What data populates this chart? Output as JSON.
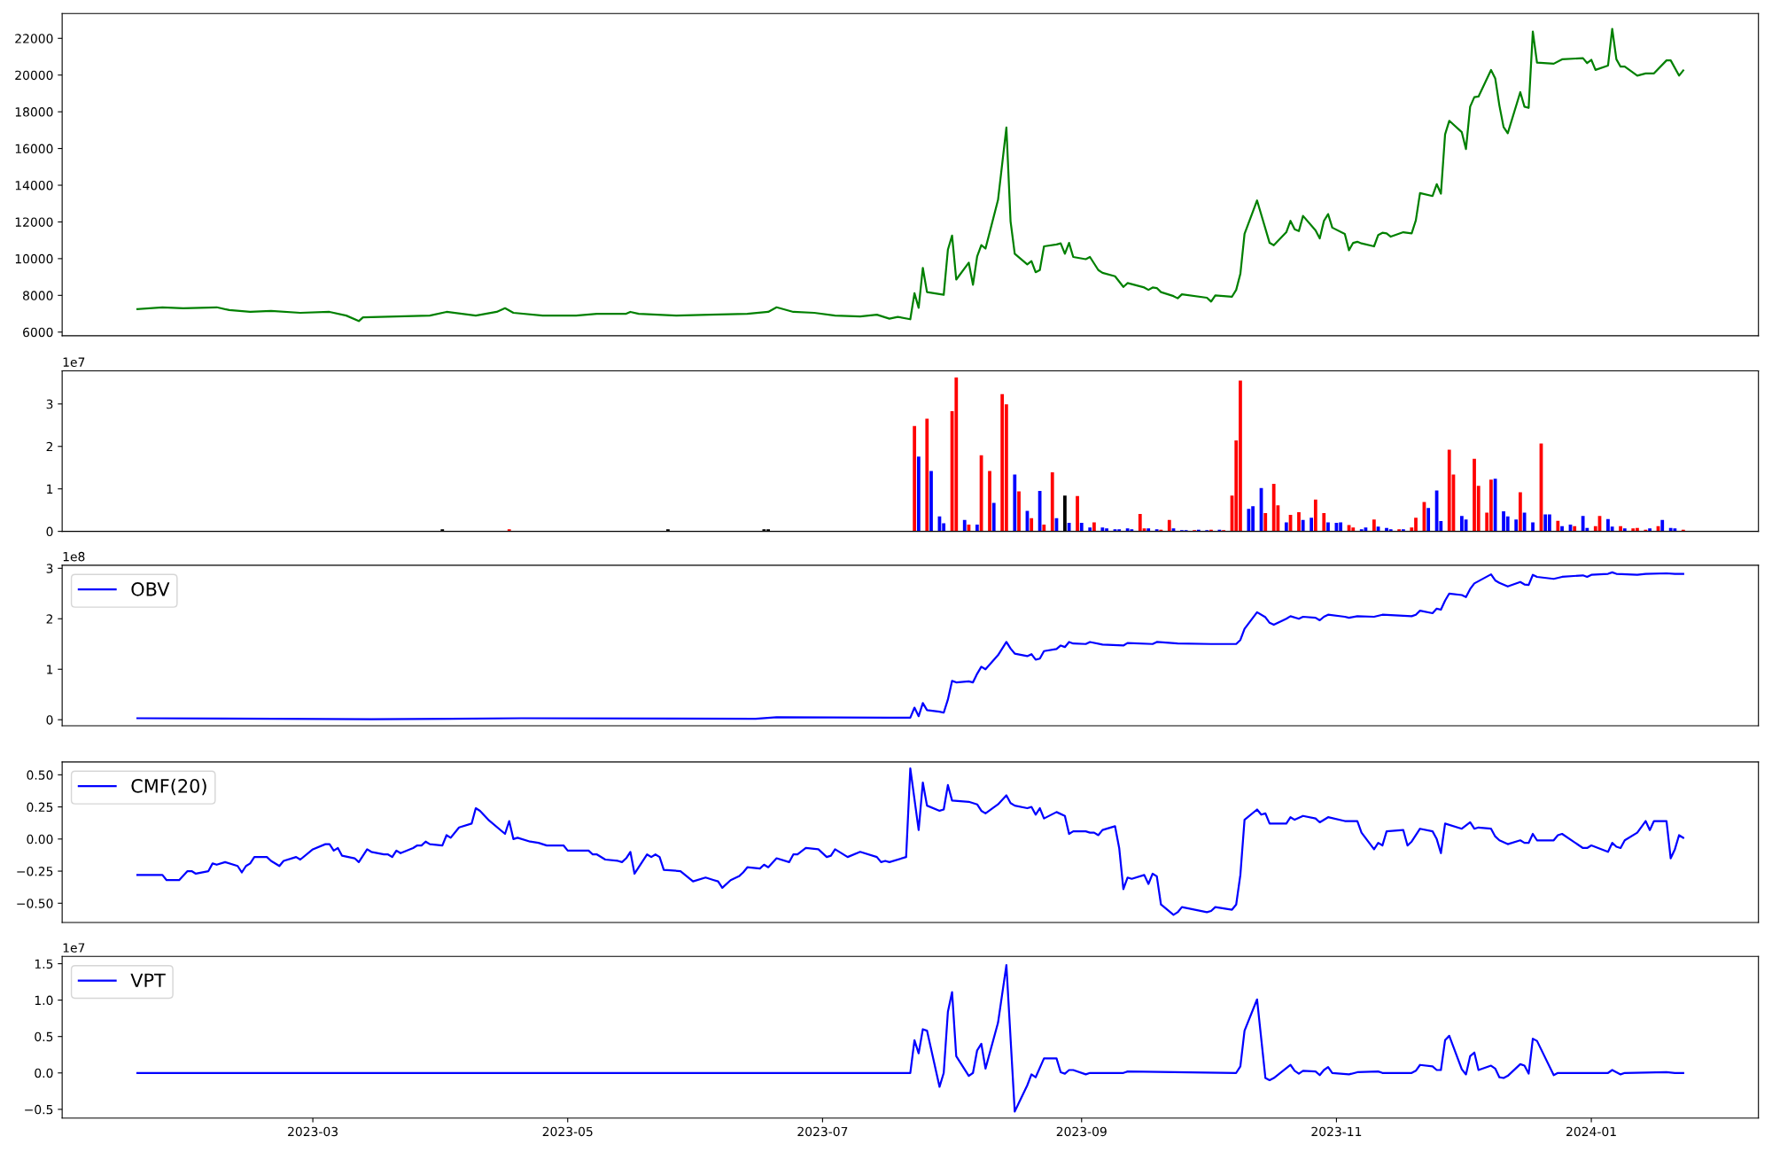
{
  "chart_data": [
    {
      "type": "line",
      "xlim": [
        "2022-12-31",
        "2024-02-10"
      ],
      "ylim": [
        5800,
        23350
      ],
      "yticks": [
        6000,
        8000,
        10000,
        12000,
        14000,
        16000,
        18000,
        20000,
        22000
      ],
      "tick_labels": "y",
      "series": [
        {
          "color": "#008000",
          "x": [
            "2023-01-18",
            "2023-01-24",
            "2023-01-29",
            "2023-02-06",
            "2023-02-09",
            "2023-02-14",
            "2023-02-19",
            "2023-02-26",
            "2023-03-05",
            "2023-03-09",
            "2023-03-12",
            "2023-03-13",
            "2023-03-21",
            "2023-03-29",
            "2023-04-02",
            "2023-04-09",
            "2023-04-14",
            "2023-04-16",
            "2023-04-18",
            "2023-04-25",
            "2023-05-03",
            "2023-05-08",
            "2023-05-15",
            "2023-05-16",
            "2023-05-18",
            "2023-05-27",
            "2023-06-04",
            "2023-06-13",
            "2023-06-18",
            "2023-06-20",
            "2023-06-24",
            "2023-06-29",
            "2023-07-04",
            "2023-07-10",
            "2023-07-14",
            "2023-07-17",
            "2023-07-19",
            "2023-07-22",
            "2023-07-23",
            "2023-07-24",
            "2023-07-25",
            "2023-07-26",
            "2023-07-30",
            "2023-07-31",
            "2023-08-01",
            "2023-08-02",
            "2023-08-05",
            "2023-08-06",
            "2023-08-07",
            "2023-08-08",
            "2023-08-09",
            "2023-08-12",
            "2023-08-14",
            "2023-08-15",
            "2023-08-16",
            "2023-08-19",
            "2023-08-20",
            "2023-08-21",
            "2023-08-22",
            "2023-08-23",
            "2023-08-26",
            "2023-08-27",
            "2023-08-28",
            "2023-08-29",
            "2023-08-30",
            "2023-09-02",
            "2023-09-03",
            "2023-09-05",
            "2023-09-06",
            "2023-09-09",
            "2023-09-11",
            "2023-09-12",
            "2023-09-16",
            "2023-09-17",
            "2023-09-18",
            "2023-09-19",
            "2023-09-20",
            "2023-09-23",
            "2023-09-24",
            "2023-09-25",
            "2023-10-01",
            "2023-10-02",
            "2023-10-03",
            "2023-10-07",
            "2023-10-08",
            "2023-10-09",
            "2023-10-10",
            "2023-10-13",
            "2023-10-16",
            "2023-10-17",
            "2023-10-20",
            "2023-10-21",
            "2023-10-22",
            "2023-10-23",
            "2023-10-24",
            "2023-10-27",
            "2023-10-28",
            "2023-10-29",
            "2023-10-30",
            "2023-10-31",
            "2023-11-03",
            "2023-11-04",
            "2023-11-05",
            "2023-11-06",
            "2023-11-07",
            "2023-11-10",
            "2023-11-11",
            "2023-11-12",
            "2023-11-13",
            "2023-11-14",
            "2023-11-17",
            "2023-11-19",
            "2023-11-20",
            "2023-11-21",
            "2023-11-24",
            "2023-11-25",
            "2023-11-26",
            "2023-11-27",
            "2023-11-28",
            "2023-12-01",
            "2023-12-02",
            "2023-12-03",
            "2023-12-04",
            "2023-12-05",
            "2023-12-08",
            "2023-12-09",
            "2023-12-10",
            "2023-12-11",
            "2023-12-12",
            "2023-12-15",
            "2023-12-16",
            "2023-12-17",
            "2023-12-18",
            "2023-12-19",
            "2023-12-23",
            "2023-12-25",
            "2023-12-30",
            "2023-12-31",
            "2024-01-01",
            "2024-01-02",
            "2024-01-05",
            "2024-01-06",
            "2024-01-07",
            "2024-01-08",
            "2024-01-09",
            "2024-01-12",
            "2024-01-14",
            "2024-01-16",
            "2024-01-19",
            "2024-01-20",
            "2024-01-22",
            "2024-01-23"
          ],
          "values": [
            7250,
            7350,
            7300,
            7350,
            7200,
            7100,
            7150,
            7050,
            7100,
            6900,
            6600,
            6800,
            6850,
            6900,
            7100,
            6900,
            7100,
            7300,
            7050,
            6900,
            6900,
            7000,
            7000,
            7100,
            7000,
            6900,
            6950,
            7000,
            7100,
            7350,
            7100,
            7050,
            6900,
            6850,
            6950,
            6730,
            6830,
            6700,
            8120,
            7320,
            9500,
            8180,
            8030,
            10490,
            11260,
            8860,
            9780,
            8580,
            10120,
            10740,
            10550,
            13200,
            17140,
            12030,
            10270,
            9690,
            9870,
            9260,
            9380,
            10670,
            10770,
            10830,
            10270,
            10860,
            10090,
            9970,
            10090,
            9380,
            9230,
            9040,
            8460,
            8670,
            8430,
            8300,
            8430,
            8400,
            8180,
            7960,
            7840,
            8060,
            7870,
            7660,
            8000,
            7930,
            8300,
            9170,
            11350,
            13170,
            10860,
            10730,
            11440,
            12060,
            11600,
            11500,
            12330,
            11540,
            11100,
            12060,
            12430,
            11690,
            11350,
            10460,
            10860,
            10920,
            10830,
            10670,
            11290,
            11410,
            11380,
            11200,
            11440,
            11380,
            12090,
            13570,
            13410,
            14060,
            13540,
            16770,
            17510,
            16890,
            15970,
            18280,
            18800,
            18830,
            20280,
            19820,
            18340,
            17170,
            16830,
            19070,
            18280,
            18210,
            22370,
            20680,
            20620,
            20860,
            20920,
            20650,
            20830,
            20280,
            20520,
            22520,
            20860,
            20460,
            20460,
            19970,
            20090,
            20090,
            20800,
            20800,
            19970,
            20250
          ]
        }
      ]
    },
    {
      "type": "bar",
      "xlim": [
        "2022-12-31",
        "2024-02-10"
      ],
      "ylim": [
        0,
        3.78
      ],
      "yticks": [
        0,
        1,
        2,
        3
      ],
      "tick_labels": "y",
      "annotations": [
        "1e7"
      ],
      "series": [
        {
          "x": [
            "2023-04-01",
            "2023-04-17",
            "2023-05-25",
            "2023-06-17",
            "2023-06-18",
            "2023-07-23",
            "2023-07-24",
            "2023-07-26",
            "2023-07-27",
            "2023-07-29",
            "2023-07-30",
            "2023-08-01",
            "2023-08-02",
            "2023-08-04",
            "2023-08-05",
            "2023-08-07",
            "2023-08-08",
            "2023-08-10",
            "2023-08-11",
            "2023-08-13",
            "2023-08-14",
            "2023-08-16",
            "2023-08-17",
            "2023-08-19",
            "2023-08-20",
            "2023-08-22",
            "2023-08-23",
            "2023-08-25",
            "2023-08-26",
            "2023-08-28",
            "2023-08-29",
            "2023-08-31",
            "2023-09-01",
            "2023-09-03",
            "2023-09-04",
            "2023-09-06",
            "2023-09-07",
            "2023-09-09",
            "2023-09-10",
            "2023-09-12",
            "2023-09-13",
            "2023-09-15",
            "2023-09-16",
            "2023-09-17",
            "2023-09-19",
            "2023-09-20",
            "2023-09-22",
            "2023-09-23",
            "2023-09-25",
            "2023-09-26",
            "2023-09-28",
            "2023-09-29",
            "2023-10-01",
            "2023-10-02",
            "2023-10-04",
            "2023-10-05",
            "2023-10-07",
            "2023-10-08",
            "2023-10-09",
            "2023-10-11",
            "2023-10-12",
            "2023-10-14",
            "2023-10-15",
            "2023-10-17",
            "2023-10-18",
            "2023-10-20",
            "2023-10-21",
            "2023-10-23",
            "2023-10-24",
            "2023-10-26",
            "2023-10-27",
            "2023-10-29",
            "2023-10-30",
            "2023-11-01",
            "2023-11-02",
            "2023-11-04",
            "2023-11-05",
            "2023-11-07",
            "2023-11-08",
            "2023-11-10",
            "2023-11-11",
            "2023-11-13",
            "2023-11-14",
            "2023-11-16",
            "2023-11-17",
            "2023-11-19",
            "2023-11-20",
            "2023-11-22",
            "2023-11-23",
            "2023-11-25",
            "2023-11-26",
            "2023-11-28",
            "2023-11-29",
            "2023-12-01",
            "2023-12-02",
            "2023-12-04",
            "2023-12-05",
            "2023-12-07",
            "2023-12-08",
            "2023-12-09",
            "2023-12-11",
            "2023-12-12",
            "2023-12-14",
            "2023-12-15",
            "2023-12-16",
            "2023-12-18",
            "2023-12-20",
            "2023-12-21",
            "2023-12-22",
            "2023-12-24",
            "2023-12-25",
            "2023-12-27",
            "2023-12-28",
            "2023-12-30",
            "2023-12-31",
            "2024-01-02",
            "2024-01-03",
            "2024-01-05",
            "2024-01-06",
            "2024-01-08",
            "2024-01-09",
            "2024-01-11",
            "2024-01-12",
            "2024-01-14",
            "2024-01-15",
            "2024-01-17",
            "2024-01-18",
            "2024-01-20",
            "2024-01-21",
            "2024-01-23"
          ],
          "values": [
            0.05,
            0.05,
            0.05,
            0.05,
            0.05,
            2.48,
            1.76,
            2.65,
            1.42,
            0.35,
            0.19,
            2.83,
            3.62,
            0.27,
            0.16,
            0.16,
            1.79,
            1.42,
            0.67,
            3.23,
            2.99,
            1.34,
            0.94,
            0.48,
            0.31,
            0.95,
            0.16,
            1.39,
            0.31,
            0.84,
            0.2,
            0.83,
            0.2,
            0.09,
            0.21,
            0.09,
            0.07,
            0.05,
            0.05,
            0.07,
            0.05,
            0.41,
            0.07,
            0.07,
            0.05,
            0.04,
            0.27,
            0.07,
            0.03,
            0.03,
            0.03,
            0.04,
            0.03,
            0.04,
            0.04,
            0.03,
            0.84,
            2.14,
            3.55,
            0.53,
            0.59,
            1.02,
            0.43,
            1.12,
            0.61,
            0.21,
            0.39,
            0.45,
            0.27,
            0.32,
            0.75,
            0.43,
            0.21,
            0.2,
            0.21,
            0.15,
            0.09,
            0.05,
            0.09,
            0.28,
            0.11,
            0.08,
            0.05,
            0.05,
            0.05,
            0.09,
            0.32,
            0.69,
            0.55,
            0.96,
            0.24,
            1.92,
            1.34,
            0.36,
            0.28,
            1.71,
            1.07,
            0.44,
            1.22,
            1.24,
            0.47,
            0.35,
            0.28,
            0.92,
            0.44,
            0.21,
            2.07,
            0.4,
            0.4,
            0.25,
            0.12,
            0.16,
            0.12,
            0.36,
            0.08,
            0.12,
            0.36,
            0.29,
            0.11,
            0.12,
            0.07,
            0.07,
            0.08,
            0.04,
            0.07,
            0.12,
            0.27,
            0.08,
            0.07,
            0.04
          ],
          "colors": [
            "#000000",
            "#ff0000",
            "#000000",
            "#000000",
            "#000000",
            "#ff0000",
            "#0000ff",
            "#ff0000",
            "#0000ff",
            "#0000ff",
            "#0000ff",
            "#ff0000",
            "#ff0000",
            "#0000ff",
            "#ff0000",
            "#0000ff",
            "#ff0000",
            "#ff0000",
            "#0000ff",
            "#ff0000",
            "#ff0000",
            "#0000ff",
            "#ff0000",
            "#0000ff",
            "#ff0000",
            "#0000ff",
            "#ff0000",
            "#ff0000",
            "#0000ff",
            "#000000",
            "#0000ff",
            "#ff0000",
            "#0000ff",
            "#0000ff",
            "#ff0000",
            "#0000ff",
            "#0000ff",
            "#0000ff",
            "#0000ff",
            "#0000ff",
            "#0000ff",
            "#ff0000",
            "#ff0000",
            "#0000ff",
            "#0000ff",
            "#ff0000",
            "#ff0000",
            "#0000ff",
            "#0000ff",
            "#0000ff",
            "#ff0000",
            "#0000ff",
            "#0000ff",
            "#ff0000",
            "#0000ff",
            "#ff0000",
            "#ff0000",
            "#ff0000",
            "#ff0000",
            "#0000ff",
            "#0000ff",
            "#0000ff",
            "#ff0000",
            "#ff0000",
            "#ff0000",
            "#0000ff",
            "#ff0000",
            "#ff0000",
            "#0000ff",
            "#0000ff",
            "#ff0000",
            "#ff0000",
            "#0000ff",
            "#0000ff",
            "#0000ff",
            "#ff0000",
            "#ff0000",
            "#0000ff",
            "#0000ff",
            "#ff0000",
            "#0000ff",
            "#0000ff",
            "#0000ff",
            "#ff0000",
            "#0000ff",
            "#ff0000",
            "#ff0000",
            "#ff0000",
            "#0000ff",
            "#0000ff",
            "#0000ff",
            "#ff0000",
            "#ff0000",
            "#0000ff",
            "#0000ff",
            "#ff0000",
            "#ff0000",
            "#ff0000",
            "#ff0000",
            "#0000ff",
            "#0000ff",
            "#0000ff",
            "#0000ff",
            "#ff0000",
            "#0000ff",
            "#0000ff",
            "#ff0000",
            "#0000ff",
            "#0000ff",
            "#ff0000",
            "#0000ff",
            "#0000ff",
            "#ff0000",
            "#0000ff",
            "#0000ff",
            "#ff0000",
            "#ff0000",
            "#0000ff",
            "#0000ff",
            "#ff0000",
            "#0000ff",
            "#ff0000",
            "#ff0000",
            "#ff0000",
            "#0000ff",
            "#ff0000",
            "#0000ff",
            "#0000ff",
            "#0000ff",
            "#ff0000"
          ]
        }
      ]
    },
    {
      "type": "line",
      "xlim": [
        "2022-12-31",
        "2024-02-10"
      ],
      "ylim": [
        -0.12,
        3.06
      ],
      "yticks": [
        0,
        1,
        2,
        3
      ],
      "tick_labels": "y",
      "legend": "top left",
      "annotations": [
        "1e8"
      ],
      "series": [
        {
          "name": "OBV",
          "color": "#0000ff",
          "x": [
            "2023-01-18",
            "2023-02-20",
            "2023-03-15",
            "2023-04-20",
            "2023-06-15",
            "2023-06-20",
            "2023-07-17",
            "2023-07-22",
            "2023-07-23",
            "2023-07-24",
            "2023-07-25",
            "2023-07-26",
            "2023-07-29",
            "2023-07-30",
            "2023-07-31",
            "2023-08-01",
            "2023-08-02",
            "2023-08-05",
            "2023-08-06",
            "2023-08-07",
            "2023-08-08",
            "2023-08-09",
            "2023-08-12",
            "2023-08-14",
            "2023-08-15",
            "2023-08-16",
            "2023-08-19",
            "2023-08-20",
            "2023-08-21",
            "2023-08-22",
            "2023-08-23",
            "2023-08-26",
            "2023-08-27",
            "2023-08-28",
            "2023-08-29",
            "2023-08-30",
            "2023-09-02",
            "2023-09-03",
            "2023-09-06",
            "2023-09-11",
            "2023-09-12",
            "2023-09-18",
            "2023-09-19",
            "2023-09-24",
            "2023-10-02",
            "2023-10-08",
            "2023-10-09",
            "2023-10-10",
            "2023-10-13",
            "2023-10-15",
            "2023-10-16",
            "2023-10-17",
            "2023-10-20",
            "2023-10-21",
            "2023-10-23",
            "2023-10-24",
            "2023-10-27",
            "2023-10-28",
            "2023-10-29",
            "2023-10-30",
            "2023-11-03",
            "2023-11-04",
            "2023-11-06",
            "2023-11-10",
            "2023-11-12",
            "2023-11-17",
            "2023-11-19",
            "2023-11-20",
            "2023-11-21",
            "2023-11-24",
            "2023-11-25",
            "2023-11-26",
            "2023-11-27",
            "2023-11-28",
            "2023-12-01",
            "2023-12-02",
            "2023-12-03",
            "2023-12-04",
            "2023-12-08",
            "2023-12-09",
            "2023-12-10",
            "2023-12-12",
            "2023-12-15",
            "2023-12-16",
            "2023-12-17",
            "2023-12-18",
            "2023-12-19",
            "2023-12-23",
            "2023-12-25",
            "2023-12-30",
            "2023-12-31",
            "2024-01-01",
            "2024-01-05",
            "2024-01-06",
            "2024-01-07",
            "2024-01-12",
            "2024-01-14",
            "2024-01-19",
            "2024-01-21",
            "2024-01-23"
          ],
          "values": [
            0.03,
            0.02,
            0.01,
            0.03,
            0.02,
            0.05,
            0.04,
            0.04,
            0.24,
            0.07,
            0.33,
            0.19,
            0.16,
            0.14,
            0.4,
            0.77,
            0.74,
            0.76,
            0.74,
            0.91,
            1.05,
            1.0,
            1.28,
            1.54,
            1.41,
            1.31,
            1.26,
            1.3,
            1.19,
            1.21,
            1.36,
            1.4,
            1.47,
            1.44,
            1.54,
            1.51,
            1.5,
            1.54,
            1.49,
            1.47,
            1.52,
            1.5,
            1.54,
            1.51,
            1.5,
            1.5,
            1.58,
            1.8,
            2.13,
            2.03,
            1.92,
            1.88,
            2.0,
            2.05,
            2.0,
            2.04,
            2.02,
            1.97,
            2.04,
            2.08,
            2.04,
            2.02,
            2.05,
            2.04,
            2.08,
            2.06,
            2.05,
            2.08,
            2.16,
            2.11,
            2.2,
            2.18,
            2.36,
            2.5,
            2.47,
            2.43,
            2.59,
            2.7,
            2.88,
            2.76,
            2.71,
            2.64,
            2.73,
            2.68,
            2.67,
            2.87,
            2.83,
            2.79,
            2.83,
            2.86,
            2.83,
            2.87,
            2.89,
            2.92,
            2.89,
            2.87,
            2.89,
            2.9,
            2.89,
            2.89
          ]
        }
      ]
    },
    {
      "type": "line",
      "xlim": [
        "2022-12-31",
        "2024-02-10"
      ],
      "ylim": [
        -0.65,
        0.6
      ],
      "yticks": [
        {
          "value": -0.5,
          "label": "−0.50"
        },
        {
          "value": -0.25,
          "label": "−0.25"
        },
        {
          "value": 0,
          "label": "0.00"
        },
        {
          "value": 0.25,
          "label": "0.25"
        },
        {
          "value": 0.5,
          "label": "0.50"
        }
      ],
      "tick_labels": "y",
      "legend": "top left",
      "series": [
        {
          "name": "CMF(20)",
          "color": "#0000ff",
          "x": [
            "2023-01-18",
            "2023-01-24",
            "2023-01-25",
            "2023-01-28",
            "2023-01-30",
            "2023-01-31",
            "2023-02-01",
            "2023-02-04",
            "2023-02-05",
            "2023-02-06",
            "2023-02-08",
            "2023-02-11",
            "2023-02-12",
            "2023-02-13",
            "2023-02-14",
            "2023-02-15",
            "2023-02-18",
            "2023-02-19",
            "2023-02-21",
            "2023-02-22",
            "2023-02-25",
            "2023-02-26",
            "2023-03-01",
            "2023-03-04",
            "2023-03-05",
            "2023-03-06",
            "2023-03-07",
            "2023-03-08",
            "2023-03-11",
            "2023-03-12",
            "2023-03-14",
            "2023-03-15",
            "2023-03-18",
            "2023-03-19",
            "2023-03-20",
            "2023-03-21",
            "2023-03-22",
            "2023-03-25",
            "2023-03-26",
            "2023-03-27",
            "2023-03-28",
            "2023-03-29",
            "2023-04-01",
            "2023-04-02",
            "2023-04-03",
            "2023-04-05",
            "2023-04-08",
            "2023-04-09",
            "2023-04-10",
            "2023-04-12",
            "2023-04-16",
            "2023-04-17",
            "2023-04-18",
            "2023-04-19",
            "2023-04-22",
            "2023-04-24",
            "2023-04-26",
            "2023-04-30",
            "2023-05-01",
            "2023-05-02",
            "2023-05-06",
            "2023-05-07",
            "2023-05-08",
            "2023-05-10",
            "2023-05-13",
            "2023-05-14",
            "2023-05-15",
            "2023-05-16",
            "2023-05-17",
            "2023-05-20",
            "2023-05-21",
            "2023-05-22",
            "2023-05-23",
            "2023-05-24",
            "2023-05-28",
            "2023-05-31",
            "2023-06-03",
            "2023-06-05",
            "2023-06-06",
            "2023-06-07",
            "2023-06-09",
            "2023-06-11",
            "2023-06-12",
            "2023-06-13",
            "2023-06-16",
            "2023-06-17",
            "2023-06-18",
            "2023-06-20",
            "2023-06-23",
            "2023-06-24",
            "2023-06-25",
            "2023-06-27",
            "2023-06-30",
            "2023-07-02",
            "2023-07-03",
            "2023-07-04",
            "2023-07-07",
            "2023-07-10",
            "2023-07-14",
            "2023-07-15",
            "2023-07-16",
            "2023-07-17",
            "2023-07-21",
            "2023-07-22",
            "2023-07-24",
            "2023-07-25",
            "2023-07-26",
            "2023-07-29",
            "2023-07-30",
            "2023-07-31",
            "2023-08-01",
            "2023-08-05",
            "2023-08-07",
            "2023-08-08",
            "2023-08-09",
            "2023-08-12",
            "2023-08-14",
            "2023-08-15",
            "2023-08-16",
            "2023-08-19",
            "2023-08-20",
            "2023-08-21",
            "2023-08-22",
            "2023-08-23",
            "2023-08-26",
            "2023-08-28",
            "2023-08-29",
            "2023-08-30",
            "2023-09-02",
            "2023-09-03",
            "2023-09-04",
            "2023-09-05",
            "2023-09-06",
            "2023-09-09",
            "2023-09-10",
            "2023-09-11",
            "2023-09-12",
            "2023-09-13",
            "2023-09-16",
            "2023-09-17",
            "2023-09-18",
            "2023-09-19",
            "2023-09-20",
            "2023-09-23",
            "2023-09-24",
            "2023-09-25",
            "2023-10-01",
            "2023-10-02",
            "2023-10-03",
            "2023-10-07",
            "2023-10-08",
            "2023-10-09",
            "2023-10-10",
            "2023-10-13",
            "2023-10-14",
            "2023-10-15",
            "2023-10-16",
            "2023-10-20",
            "2023-10-21",
            "2023-10-22",
            "2023-10-24",
            "2023-10-27",
            "2023-10-28",
            "2023-10-30",
            "2023-11-03",
            "2023-11-04",
            "2023-11-06",
            "2023-11-07",
            "2023-11-10",
            "2023-11-11",
            "2023-11-12",
            "2023-11-13",
            "2023-11-17",
            "2023-11-18",
            "2023-11-19",
            "2023-11-21",
            "2023-11-24",
            "2023-11-25",
            "2023-11-26",
            "2023-11-27",
            "2023-12-01",
            "2023-12-03",
            "2023-12-04",
            "2023-12-05",
            "2023-12-08",
            "2023-12-09",
            "2023-12-10",
            "2023-12-12",
            "2023-12-15",
            "2023-12-16",
            "2023-12-17",
            "2023-12-18",
            "2023-12-19",
            "2023-12-23",
            "2023-12-24",
            "2023-12-25",
            "2023-12-30",
            "2023-12-31",
            "2024-01-01",
            "2024-01-05",
            "2024-01-06",
            "2024-01-07",
            "2024-01-08",
            "2024-01-09",
            "2024-01-12",
            "2024-01-14",
            "2024-01-15",
            "2024-01-16",
            "2024-01-19",
            "2024-01-20",
            "2024-01-21",
            "2024-01-22",
            "2024-01-23"
          ],
          "values": [
            -0.28,
            -0.28,
            -0.32,
            -0.32,
            -0.25,
            -0.25,
            -0.27,
            -0.25,
            -0.19,
            -0.2,
            -0.18,
            -0.21,
            -0.26,
            -0.21,
            -0.19,
            -0.14,
            -0.14,
            -0.17,
            -0.21,
            -0.17,
            -0.14,
            -0.16,
            -0.08,
            -0.04,
            -0.04,
            -0.09,
            -0.07,
            -0.13,
            -0.15,
            -0.18,
            -0.08,
            -0.1,
            -0.12,
            -0.12,
            -0.14,
            -0.09,
            -0.11,
            -0.07,
            -0.05,
            -0.05,
            -0.02,
            -0.04,
            -0.05,
            0.03,
            0.01,
            0.09,
            0.12,
            0.24,
            0.22,
            0.15,
            0.04,
            0.14,
            0.0,
            0.01,
            -0.02,
            -0.03,
            -0.05,
            -0.05,
            -0.09,
            -0.09,
            -0.09,
            -0.12,
            -0.12,
            -0.16,
            -0.17,
            -0.18,
            -0.15,
            -0.1,
            -0.27,
            -0.12,
            -0.14,
            -0.12,
            -0.14,
            -0.24,
            -0.25,
            -0.33,
            -0.3,
            -0.32,
            -0.33,
            -0.38,
            -0.32,
            -0.29,
            -0.26,
            -0.22,
            -0.23,
            -0.2,
            -0.22,
            -0.15,
            -0.18,
            -0.12,
            -0.12,
            -0.07,
            -0.08,
            -0.14,
            -0.13,
            -0.08,
            -0.14,
            -0.1,
            -0.14,
            -0.18,
            -0.17,
            -0.18,
            -0.14,
            0.55,
            0.07,
            0.44,
            0.26,
            0.22,
            0.23,
            0.42,
            0.3,
            0.29,
            0.27,
            0.22,
            0.2,
            0.27,
            0.34,
            0.28,
            0.26,
            0.24,
            0.25,
            0.19,
            0.24,
            0.16,
            0.21,
            0.18,
            0.04,
            0.06,
            0.06,
            0.05,
            0.05,
            0.03,
            0.07,
            0.1,
            -0.07,
            -0.39,
            -0.3,
            -0.31,
            -0.28,
            -0.35,
            -0.27,
            -0.29,
            -0.51,
            -0.59,
            -0.57,
            -0.53,
            -0.57,
            -0.56,
            -0.53,
            -0.55,
            -0.51,
            -0.28,
            0.15,
            0.23,
            0.19,
            0.2,
            0.12,
            0.12,
            0.17,
            0.15,
            0.18,
            0.16,
            0.13,
            0.17,
            0.14,
            0.14,
            0.14,
            0.05,
            -0.08,
            -0.03,
            -0.05,
            0.06,
            0.07,
            -0.05,
            -0.02,
            0.08,
            0.06,
            0.0,
            -0.11,
            0.12,
            0.08,
            0.13,
            0.08,
            0.09,
            0.08,
            0.02,
            -0.01,
            -0.04,
            -0.01,
            -0.03,
            -0.03,
            0.04,
            -0.01,
            -0.01,
            0.03,
            0.04,
            -0.07,
            -0.07,
            -0.05,
            -0.1,
            -0.03,
            -0.06,
            -0.07,
            -0.01,
            0.05,
            0.14,
            0.07,
            0.14,
            0.14,
            -0.15,
            -0.08,
            0.03,
            0.01
          ]
        }
      ]
    },
    {
      "type": "line",
      "xlim": [
        "2022-12-31",
        "2024-02-10"
      ],
      "ylim": [
        -0.62,
        1.6
      ],
      "yticks": [
        {
          "value": -0.5,
          "label": "−0.5"
        },
        {
          "value": 0,
          "label": "0.0"
        },
        {
          "value": 0.5,
          "label": "0.5"
        },
        {
          "value": 1,
          "label": "1.0"
        },
        {
          "value": 1.5,
          "label": "1.5"
        }
      ],
      "xticks": [
        {
          "value": "2023-03-01",
          "label": "2023-03"
        },
        {
          "value": "2023-05-01",
          "label": "2023-05"
        },
        {
          "value": "2023-07-01",
          "label": "2023-07"
        },
        {
          "value": "2023-09-01",
          "label": "2023-09"
        },
        {
          "value": "2023-11-01",
          "label": "2023-11"
        },
        {
          "value": "2024-01-01",
          "label": "2024-01"
        }
      ],
      "legend": "top left",
      "annotations": [
        "1e7"
      ],
      "series": [
        {
          "name": "VPT",
          "color": "#0000ff",
          "x": [
            "2023-01-18",
            "2023-07-17",
            "2023-07-22",
            "2023-07-23",
            "2023-07-24",
            "2023-07-25",
            "2023-07-26",
            "2023-07-29",
            "2023-07-30",
            "2023-07-31",
            "2023-08-01",
            "2023-08-02",
            "2023-08-05",
            "2023-08-06",
            "2023-08-07",
            "2023-08-08",
            "2023-08-09",
            "2023-08-12",
            "2023-08-14",
            "2023-08-16",
            "2023-08-19",
            "2023-08-20",
            "2023-08-21",
            "2023-08-23",
            "2023-08-26",
            "2023-08-27",
            "2023-08-28",
            "2023-08-29",
            "2023-08-30",
            "2023-09-02",
            "2023-09-03",
            "2023-09-11",
            "2023-09-12",
            "2023-10-08",
            "2023-10-09",
            "2023-10-10",
            "2023-10-13",
            "2023-10-15",
            "2023-10-16",
            "2023-10-17",
            "2023-10-21",
            "2023-10-22",
            "2023-10-23",
            "2023-10-24",
            "2023-10-27",
            "2023-10-28",
            "2023-10-29",
            "2023-10-30",
            "2023-10-31",
            "2023-11-04",
            "2023-11-06",
            "2023-11-11",
            "2023-11-12",
            "2023-11-19",
            "2023-11-20",
            "2023-11-21",
            "2023-11-24",
            "2023-11-25",
            "2023-11-26",
            "2023-11-27",
            "2023-11-28",
            "2023-12-01",
            "2023-12-02",
            "2023-12-03",
            "2023-12-04",
            "2023-12-05",
            "2023-12-08",
            "2023-12-09",
            "2023-12-10",
            "2023-12-11",
            "2023-12-12",
            "2023-12-15",
            "2023-12-16",
            "2023-12-17",
            "2023-12-18",
            "2023-12-19",
            "2023-12-23",
            "2023-12-24",
            "2023-12-31",
            "2024-01-05",
            "2024-01-06",
            "2024-01-08",
            "2024-01-09",
            "2024-01-19",
            "2024-01-21",
            "2024-01-23"
          ],
          "values": [
            0.0,
            0.0,
            0.0,
            0.45,
            0.27,
            0.6,
            0.58,
            -0.19,
            0.0,
            0.84,
            1.11,
            0.23,
            -0.04,
            0.0,
            0.31,
            0.4,
            0.06,
            0.69,
            1.48,
            -0.53,
            -0.17,
            -0.02,
            -0.06,
            0.2,
            0.2,
            0.01,
            -0.01,
            0.04,
            0.04,
            -0.02,
            0.0,
            0.0,
            0.02,
            0.0,
            0.09,
            0.58,
            1.01,
            -0.07,
            -0.1,
            -0.07,
            0.11,
            0.03,
            -0.01,
            0.03,
            0.02,
            -0.03,
            0.04,
            0.08,
            0.0,
            -0.02,
            0.01,
            0.02,
            0.0,
            0.0,
            0.03,
            0.11,
            0.09,
            0.04,
            0.04,
            0.45,
            0.51,
            0.05,
            -0.02,
            0.23,
            0.28,
            0.04,
            0.1,
            0.06,
            -0.06,
            -0.07,
            -0.04,
            0.12,
            0.1,
            -0.01,
            0.47,
            0.44,
            -0.03,
            0.0,
            0.0,
            0.0,
            0.04,
            -0.02,
            0.0,
            0.01,
            0.0,
            0.0
          ]
        }
      ]
    }
  ]
}
